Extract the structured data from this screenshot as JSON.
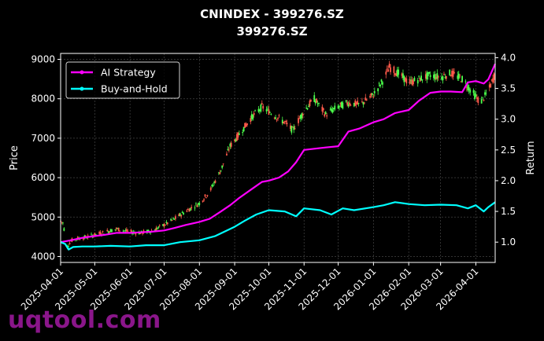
{
  "header": {
    "title": "CNINDEX - 399276.SZ",
    "subtitle": "399276.SZ"
  },
  "watermark": "uqtool.com",
  "chart_data": {
    "type": "line",
    "title": "CNINDEX - 399276.SZ",
    "subtitle": "399276.SZ",
    "ylabel_left": "Price",
    "ylabel_right": "Return",
    "xlabel": "",
    "grid": true,
    "legend_position": "upper-left",
    "left_axis": {
      "ylim": [
        3850,
        9150
      ],
      "ticks": [
        4000,
        5000,
        6000,
        7000,
        8000,
        9000
      ]
    },
    "right_axis": {
      "ylim": [
        0.67,
        4.07
      ],
      "ticks": [
        1.0,
        1.5,
        2.0,
        2.5,
        3.0,
        3.5,
        4.0
      ]
    },
    "x_range": [
      "2025-04-01",
      "2026-04-18"
    ],
    "x_ticks": [
      "2025-04-01",
      "2025-05-01",
      "2025-06-01",
      "2025-07-01",
      "2025-08-01",
      "2025-09-01",
      "2025-10-01",
      "2025-11-01",
      "2025-12-01",
      "2026-01-01",
      "2026-02-01",
      "2026-03-01",
      "2026-04-01"
    ],
    "candles_price_path": [
      [
        "2025-04-01",
        4900
      ],
      [
        "2025-04-03",
        4850
      ],
      [
        "2025-04-07",
        4250
      ],
      [
        "2025-04-10",
        4400
      ],
      [
        "2025-04-15",
        4450
      ],
      [
        "2025-04-22",
        4480
      ],
      [
        "2025-05-01",
        4550
      ],
      [
        "2025-05-10",
        4620
      ],
      [
        "2025-05-20",
        4700
      ],
      [
        "2025-06-01",
        4620
      ],
      [
        "2025-06-10",
        4600
      ],
      [
        "2025-06-20",
        4650
      ],
      [
        "2025-07-01",
        4800
      ],
      [
        "2025-07-10",
        4950
      ],
      [
        "2025-07-20",
        5150
      ],
      [
        "2025-08-01",
        5350
      ],
      [
        "2025-08-10",
        5650
      ],
      [
        "2025-08-20",
        6200
      ],
      [
        "2025-08-28",
        6800
      ],
      [
        "2025-09-05",
        7100
      ],
      [
        "2025-09-15",
        7500
      ],
      [
        "2025-09-25",
        7800
      ],
      [
        "2025-10-05",
        7600
      ],
      [
        "2025-10-15",
        7400
      ],
      [
        "2025-10-22",
        7200
      ],
      [
        "2025-11-01",
        7700
      ],
      [
        "2025-11-10",
        8000
      ],
      [
        "2025-11-20",
        7600
      ],
      [
        "2025-12-01",
        7800
      ],
      [
        "2025-12-10",
        7900
      ],
      [
        "2025-12-20",
        7850
      ],
      [
        "2026-01-01",
        8100
      ],
      [
        "2026-01-10",
        8500
      ],
      [
        "2026-01-15",
        8800
      ],
      [
        "2026-01-25",
        8600
      ],
      [
        "2026-02-01",
        8400
      ],
      [
        "2026-02-10",
        8500
      ],
      [
        "2026-02-20",
        8600
      ],
      [
        "2026-03-01",
        8550
      ],
      [
        "2026-03-10",
        8650
      ],
      [
        "2026-03-20",
        8500
      ],
      [
        "2026-03-28",
        8200
      ],
      [
        "2026-04-05",
        7900
      ],
      [
        "2026-04-12",
        8200
      ],
      [
        "2026-04-18",
        8650
      ]
    ],
    "series": [
      {
        "name": "AI Strategy",
        "color": "#ff00ff",
        "axis": "right",
        "points": [
          [
            "2025-04-01",
            1.0
          ],
          [
            "2025-04-10",
            1.03
          ],
          [
            "2025-04-20",
            1.07
          ],
          [
            "2025-05-01",
            1.1
          ],
          [
            "2025-05-10",
            1.12
          ],
          [
            "2025-05-20",
            1.15
          ],
          [
            "2025-06-01",
            1.15
          ],
          [
            "2025-06-10",
            1.16
          ],
          [
            "2025-06-20",
            1.17
          ],
          [
            "2025-07-01",
            1.19
          ],
          [
            "2025-07-10",
            1.23
          ],
          [
            "2025-07-20",
            1.28
          ],
          [
            "2025-08-01",
            1.33
          ],
          [
            "2025-08-10",
            1.38
          ],
          [
            "2025-08-20",
            1.5
          ],
          [
            "2025-08-28",
            1.6
          ],
          [
            "2025-09-05",
            1.72
          ],
          [
            "2025-09-15",
            1.85
          ],
          [
            "2025-09-25",
            1.98
          ],
          [
            "2025-10-01",
            2.0
          ],
          [
            "2025-10-10",
            2.05
          ],
          [
            "2025-10-18",
            2.15
          ],
          [
            "2025-10-25",
            2.3
          ],
          [
            "2025-11-01",
            2.5
          ],
          [
            "2025-11-10",
            2.52
          ],
          [
            "2025-11-20",
            2.54
          ],
          [
            "2025-12-01",
            2.56
          ],
          [
            "2025-12-10",
            2.8
          ],
          [
            "2025-12-20",
            2.85
          ],
          [
            "2026-01-01",
            2.95
          ],
          [
            "2026-01-10",
            3.0
          ],
          [
            "2026-01-20",
            3.1
          ],
          [
            "2026-02-01",
            3.15
          ],
          [
            "2026-02-10",
            3.3
          ],
          [
            "2026-02-20",
            3.43
          ],
          [
            "2026-03-01",
            3.45
          ],
          [
            "2026-03-10",
            3.45
          ],
          [
            "2026-03-20",
            3.44
          ],
          [
            "2026-03-25",
            3.6
          ],
          [
            "2026-04-01",
            3.62
          ],
          [
            "2026-04-08",
            3.58
          ],
          [
            "2026-04-12",
            3.65
          ],
          [
            "2026-04-18",
            3.9
          ]
        ]
      },
      {
        "name": "Buy-and-Hold",
        "color": "#00ffff",
        "axis": "right",
        "points": [
          [
            "2025-04-01",
            1.0
          ],
          [
            "2025-04-05",
            0.97
          ],
          [
            "2025-04-08",
            0.88
          ],
          [
            "2025-04-12",
            0.92
          ],
          [
            "2025-04-20",
            0.93
          ],
          [
            "2025-05-01",
            0.93
          ],
          [
            "2025-05-15",
            0.94
          ],
          [
            "2025-06-01",
            0.93
          ],
          [
            "2025-06-15",
            0.95
          ],
          [
            "2025-07-01",
            0.95
          ],
          [
            "2025-07-15",
            1.0
          ],
          [
            "2025-08-01",
            1.03
          ],
          [
            "2025-08-15",
            1.1
          ],
          [
            "2025-09-01",
            1.25
          ],
          [
            "2025-09-10",
            1.35
          ],
          [
            "2025-09-20",
            1.45
          ],
          [
            "2025-10-01",
            1.52
          ],
          [
            "2025-10-15",
            1.5
          ],
          [
            "2025-10-25",
            1.42
          ],
          [
            "2025-11-01",
            1.55
          ],
          [
            "2025-11-15",
            1.52
          ],
          [
            "2025-11-25",
            1.45
          ],
          [
            "2025-12-05",
            1.55
          ],
          [
            "2025-12-15",
            1.52
          ],
          [
            "2026-01-01",
            1.57
          ],
          [
            "2026-01-10",
            1.6
          ],
          [
            "2026-01-20",
            1.65
          ],
          [
            "2026-02-01",
            1.62
          ],
          [
            "2026-02-15",
            1.6
          ],
          [
            "2026-03-01",
            1.61
          ],
          [
            "2026-03-15",
            1.6
          ],
          [
            "2026-03-25",
            1.55
          ],
          [
            "2026-04-01",
            1.6
          ],
          [
            "2026-04-08",
            1.5
          ],
          [
            "2026-04-12",
            1.57
          ],
          [
            "2026-04-18",
            1.65
          ]
        ]
      }
    ]
  }
}
